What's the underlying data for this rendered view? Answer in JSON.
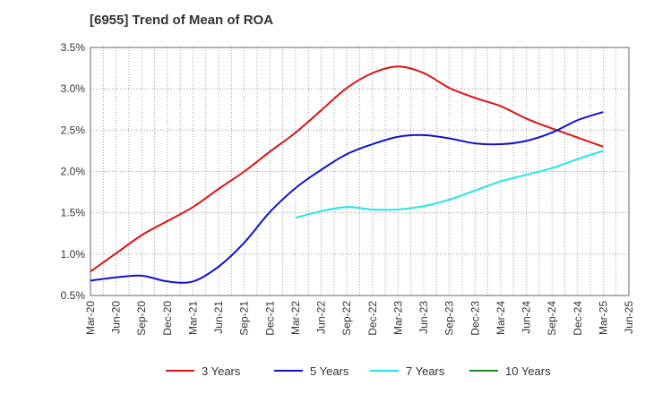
{
  "chart_data": {
    "type": "line",
    "title": "[6955]  Trend of Mean of ROA",
    "xlabel": "",
    "ylabel": "",
    "grid": true,
    "legend_position": "bottom",
    "x_ticks": [
      "Mar-20",
      "Jun-20",
      "Sep-20",
      "Dec-20",
      "Mar-21",
      "Jun-21",
      "Sep-21",
      "Dec-21",
      "Mar-22",
      "Jun-22",
      "Sep-22",
      "Dec-22",
      "Mar-23",
      "Jun-23",
      "Sep-23",
      "Dec-23",
      "Mar-24",
      "Jun-24",
      "Sep-24",
      "Dec-24",
      "Mar-25",
      "Jun-25"
    ],
    "y_ticks": [
      "0.5%",
      "1.0%",
      "1.5%",
      "2.0%",
      "2.5%",
      "3.0%",
      "3.5%"
    ],
    "ylim": [
      0.5,
      3.5
    ],
    "series": [
      {
        "name": "3 Years",
        "color": "#dd1111",
        "values": [
          0.79,
          1.01,
          1.23,
          1.4,
          1.57,
          1.79,
          2.0,
          2.24,
          2.47,
          2.74,
          3.01,
          3.19,
          3.27,
          3.19,
          3.01,
          2.89,
          2.79,
          2.64,
          2.52,
          2.41,
          2.3,
          null
        ]
      },
      {
        "name": "5 Years",
        "color": "#1111cc",
        "values": [
          0.68,
          0.72,
          0.74,
          0.67,
          0.67,
          0.85,
          1.14,
          1.51,
          1.8,
          2.02,
          2.21,
          2.33,
          2.42,
          2.44,
          2.4,
          2.34,
          2.33,
          2.37,
          2.47,
          2.62,
          2.72,
          null
        ]
      },
      {
        "name": "7 Years",
        "color": "#22e5e5",
        "values": [
          null,
          null,
          null,
          null,
          null,
          null,
          null,
          null,
          1.44,
          1.52,
          1.57,
          1.54,
          1.54,
          1.58,
          1.66,
          1.77,
          1.88,
          1.96,
          2.04,
          2.15,
          2.25,
          null
        ]
      },
      {
        "name": "10 Years",
        "color": "#228822",
        "values": [
          null,
          null,
          null,
          null,
          null,
          null,
          null,
          null,
          null,
          null,
          null,
          null,
          null,
          null,
          null,
          null,
          null,
          null,
          null,
          null,
          null,
          null
        ]
      }
    ]
  }
}
